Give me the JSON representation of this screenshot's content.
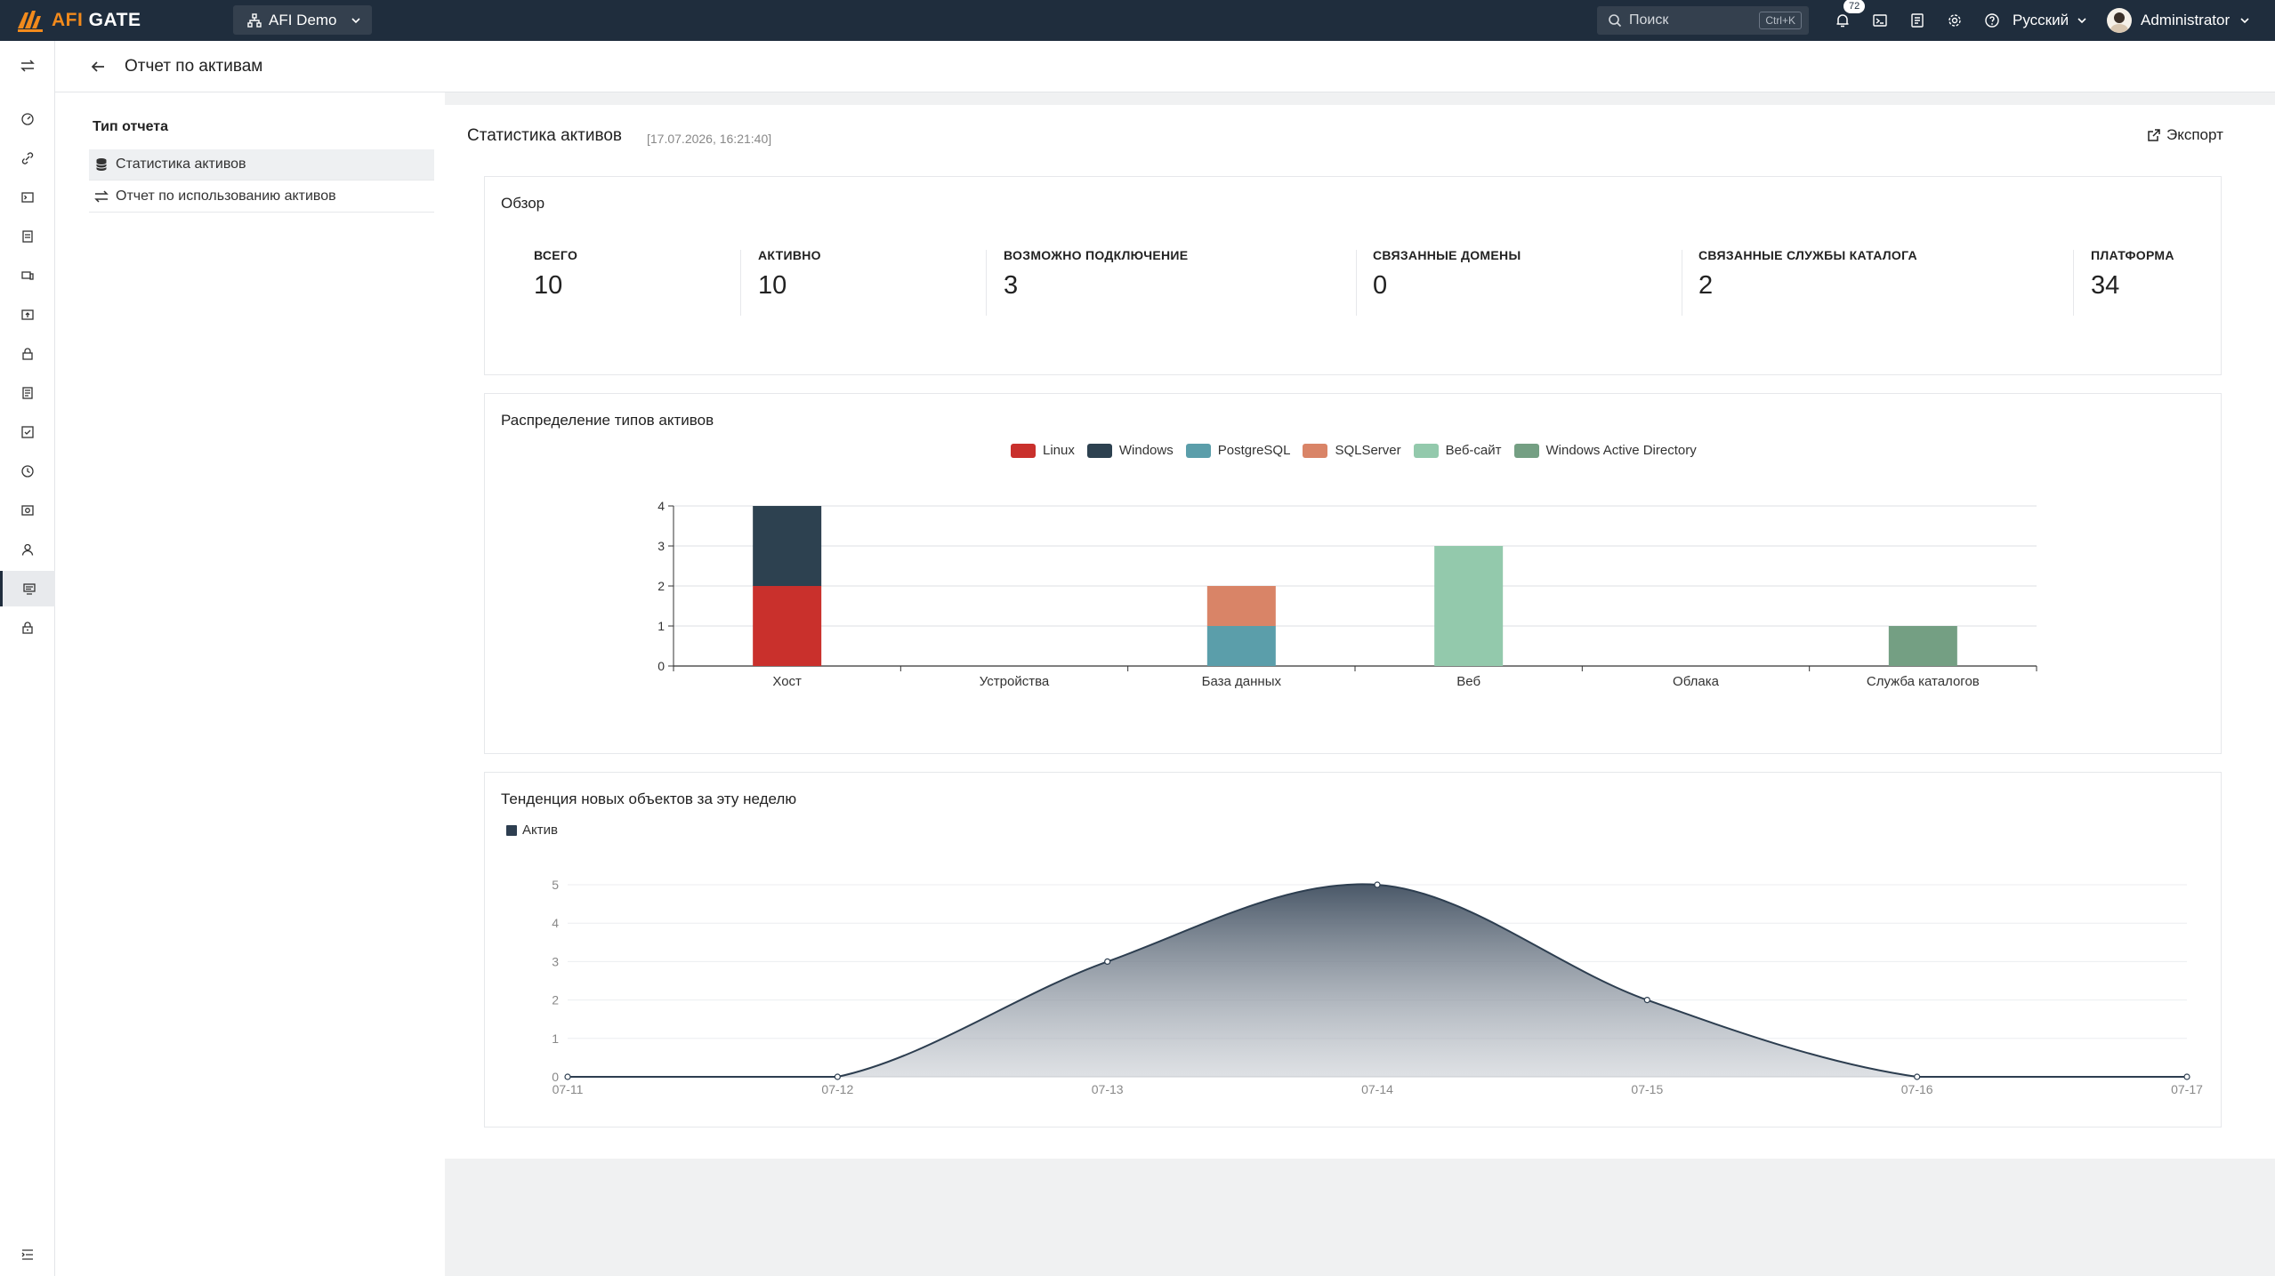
{
  "header": {
    "logo_afi": "AFI",
    "logo_gate": "GATE",
    "org_name": "AFI Demo",
    "search_placeholder": "Поиск",
    "search_shortcut": "Ctrl+K",
    "notifications_count": "72",
    "language": "Русский",
    "user_name": "Administrator"
  },
  "subheader": {
    "title": "Отчет по активам"
  },
  "report_types": {
    "title": "Тип отчета",
    "items": [
      {
        "label": "Статистика активов",
        "active": true
      },
      {
        "label": "Отчет по использованию активов",
        "active": false
      }
    ]
  },
  "main": {
    "title": "Статистика активов",
    "timestamp": "[17.07.2026, 16:21:40]",
    "export_label": "Экспорт"
  },
  "overview": {
    "title": "Обзор",
    "stats": [
      {
        "label": "ВСЕГО",
        "value": "10"
      },
      {
        "label": "АКТИВНО",
        "value": "10"
      },
      {
        "label": "ВОЗМОЖНО ПОДКЛЮЧЕНИЕ",
        "value": "3"
      },
      {
        "label": "СВЯЗАННЫЕ ДОМЕНЫ",
        "value": "0"
      },
      {
        "label": "СВЯЗАННЫЕ СЛУЖБЫ КАТАЛОГА",
        "value": "2"
      },
      {
        "label": "ПЛАТФОРМА",
        "value": "34"
      }
    ]
  },
  "distribution": {
    "title": "Распределение типов активов"
  },
  "trend": {
    "title": "Тенденция новых объектов за эту неделю"
  },
  "chart_data": [
    {
      "type": "bar",
      "stacked": true,
      "categories": [
        "Хост",
        "Устройства",
        "База данных",
        "Веб",
        "Облака",
        "Служба каталогов"
      ],
      "ylim": [
        0,
        4
      ],
      "yticks": [
        0,
        1,
        2,
        3,
        4
      ],
      "legend_position": "top-center",
      "grid": true,
      "series": [
        {
          "name": "Linux",
          "color": "#c9302c",
          "values": [
            2,
            0,
            0,
            0,
            0,
            0
          ]
        },
        {
          "name": "Windows",
          "color": "#2d4150",
          "values": [
            2,
            0,
            0,
            0,
            0,
            0
          ]
        },
        {
          "name": "PostgreSQL",
          "color": "#5b9eaa",
          "values": [
            0,
            0,
            1,
            0,
            0,
            0
          ]
        },
        {
          "name": "SQLServer",
          "color": "#d98467",
          "values": [
            0,
            0,
            1,
            0,
            0,
            0
          ]
        },
        {
          "name": "Веб-сайт",
          "color": "#93c9ac",
          "values": [
            0,
            0,
            0,
            3,
            0,
            0
          ]
        },
        {
          "name": "Windows Active Directory",
          "color": "#749f83",
          "values": [
            0,
            0,
            0,
            0,
            0,
            1
          ]
        }
      ]
    },
    {
      "type": "area",
      "x": [
        "07-11",
        "07-12",
        "07-13",
        "07-14",
        "07-15",
        "07-16",
        "07-17"
      ],
      "ylim": [
        0,
        5
      ],
      "yticks": [
        0,
        1,
        2,
        3,
        4,
        5
      ],
      "legend_position": "top-left",
      "grid": true,
      "series": [
        {
          "name": "Актив",
          "color": "#2d3e50",
          "values": [
            0,
            0,
            3,
            5,
            2,
            0,
            0
          ]
        }
      ]
    }
  ]
}
